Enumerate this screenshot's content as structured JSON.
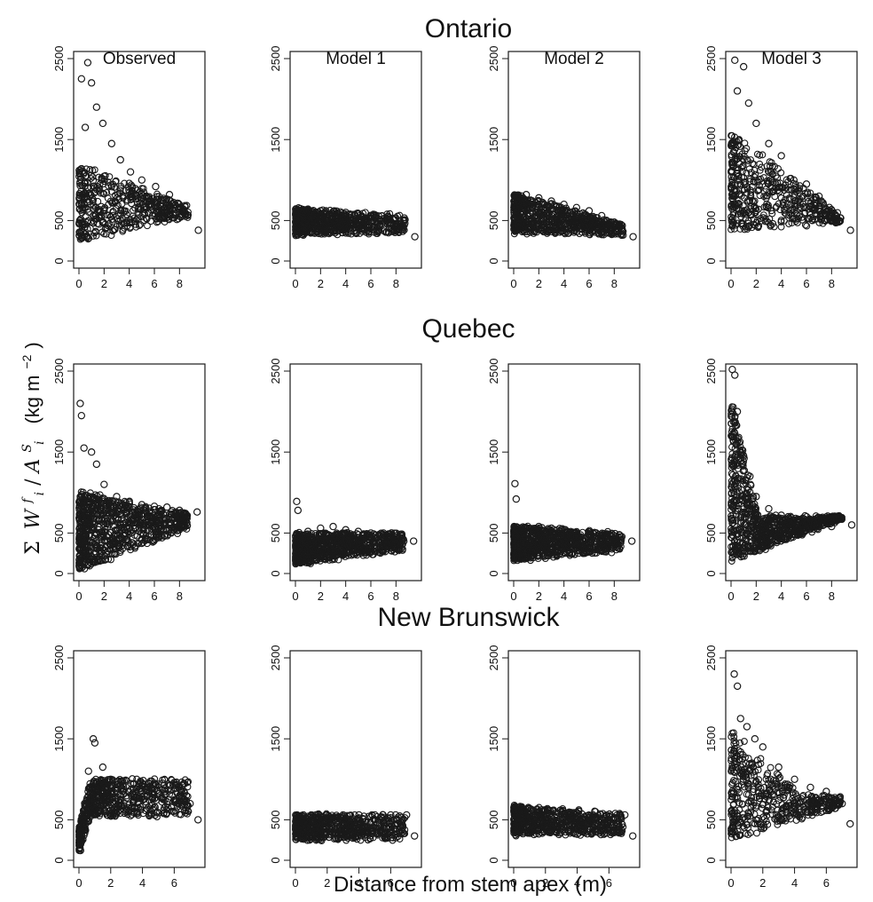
{
  "figure": {
    "xlabel": "Distance from stem apex (m)",
    "ylabel": {
      "sigma": "Σ",
      "W": "W",
      "W_sup": "f",
      "W_sub": "i",
      "slash": "/",
      "A": "A",
      "A_sup": "S",
      "A_sub": "i",
      "units": "(kg m",
      "units_exp": "−2",
      "units_close": ")"
    },
    "ink_color": "#1a1a1a"
  },
  "chart_data": [
    {
      "region": "Ontario",
      "type": "scatter",
      "ylim": [
        0,
        2500
      ],
      "yticks": [
        "0",
        "500",
        "1500",
        "2500"
      ],
      "xlim": [
        0,
        9.6
      ],
      "xticks": [
        "0",
        "2",
        "4",
        "6",
        "8"
      ],
      "panels": [
        {
          "title": "Observed",
          "model": "obs-on",
          "x": [
            0.2,
            0.5,
            0.7,
            1.0,
            1.4,
            1.9,
            2.6,
            3.3,
            4.1,
            5.0,
            6.1,
            7.2,
            8.3,
            9.5
          ],
          "y": [
            2250,
            1650,
            2450,
            2200,
            1900,
            1700,
            1450,
            1250,
            1100,
            1000,
            920,
            820,
            640,
            380
          ]
        },
        {
          "title": "Model 1",
          "model": "m1",
          "x": [
            0.2,
            1.0,
            2.0,
            3.0,
            4.0,
            5.0,
            6.0,
            7.0,
            8.0,
            9.5
          ],
          "y": [
            620,
            640,
            620,
            610,
            600,
            580,
            560,
            520,
            450,
            300
          ]
        },
        {
          "title": "Model 2",
          "model": "m2",
          "x": [
            0.2,
            1.0,
            2.0,
            3.0,
            4.0,
            5.0,
            6.0,
            7.0,
            8.0,
            9.5
          ],
          "y": [
            800,
            820,
            780,
            740,
            700,
            660,
            620,
            560,
            480,
            300
          ]
        },
        {
          "title": "Model 3",
          "model": "obs-on-m3",
          "x": [
            0.3,
            0.5,
            1.0,
            1.4,
            2.0,
            3.0,
            4.0,
            5.0,
            6.0,
            7.0,
            8.0,
            9.5
          ],
          "y": [
            2480,
            2100,
            2400,
            1950,
            1700,
            1450,
            1300,
            1000,
            950,
            800,
            600,
            380
          ]
        }
      ]
    },
    {
      "region": "Quebec",
      "type": "scatter",
      "ylim": [
        0,
        2500
      ],
      "yticks": [
        "0",
        "500",
        "1500",
        "2500"
      ],
      "xlim": [
        0,
        9.6
      ],
      "xticks": [
        "0",
        "2",
        "4",
        "6",
        "8"
      ],
      "panels": [
        {
          "title": "",
          "model": "obs-qc",
          "x": [
            0.1,
            0.2,
            0.4,
            1.0,
            1.4,
            2.0,
            3.0,
            4.0,
            5.0,
            6.0,
            7.0,
            8.0,
            9.4
          ],
          "y": [
            2100,
            1950,
            1550,
            1500,
            1350,
            1100,
            950,
            880,
            850,
            830,
            820,
            780,
            760
          ]
        },
        {
          "title": "",
          "model": "m1-qc",
          "x": [
            0.1,
            0.2,
            1.0,
            2.0,
            3.0,
            4.0,
            5.0,
            6.0,
            7.0,
            8.0,
            9.4
          ],
          "y": [
            890,
            780,
            520,
            560,
            580,
            540,
            520,
            500,
            500,
            450,
            400
          ]
        },
        {
          "title": "",
          "model": "m2-qc",
          "x": [
            0.1,
            0.2,
            1.0,
            2.0,
            3.0,
            4.0,
            5.0,
            6.0,
            7.0,
            8.0,
            9.4
          ],
          "y": [
            1110,
            920,
            560,
            580,
            560,
            520,
            500,
            480,
            460,
            420,
            400
          ]
        },
        {
          "title": "",
          "model": "m3-qc",
          "x": [
            0.1,
            0.3,
            0.5,
            1.0,
            1.5,
            2.0,
            3.0,
            4.0,
            5.0,
            6.0,
            7.0,
            8.0,
            9.6
          ],
          "y": [
            2520,
            2450,
            2000,
            1450,
            1200,
            950,
            800,
            720,
            650,
            620,
            600,
            580,
            600
          ]
        }
      ]
    },
    {
      "region": "New Brunswick",
      "type": "scatter",
      "ylim": [
        0,
        2500
      ],
      "yticks": [
        "0",
        "500",
        "1500",
        "2500"
      ],
      "xlim": [
        0,
        7.6
      ],
      "xticks": [
        "0",
        "2",
        "4",
        "6"
      ],
      "panels": [
        {
          "title": "",
          "model": "obs-nb",
          "x": [
            0.1,
            0.3,
            0.6,
            0.9,
            1.0,
            1.5,
            2.0,
            3.0,
            4.0,
            5.0,
            6.0,
            7.0,
            7.5
          ],
          "y": [
            120,
            600,
            1100,
            1500,
            1450,
            1150,
            1000,
            980,
            950,
            940,
            960,
            700,
            500
          ]
        },
        {
          "title": "",
          "model": "m1-nb",
          "x": [
            0.1,
            0.5,
            1.0,
            2.0,
            3.0,
            4.0,
            5.0,
            6.0,
            7.0,
            7.5
          ],
          "y": [
            560,
            560,
            560,
            560,
            560,
            560,
            560,
            560,
            560,
            300
          ]
        },
        {
          "title": "",
          "model": "m2-nb",
          "x": [
            0.1,
            0.5,
            1.0,
            2.0,
            3.0,
            4.0,
            5.0,
            6.0,
            7.0,
            7.5
          ],
          "y": [
            660,
            660,
            640,
            620,
            600,
            580,
            560,
            540,
            560,
            300
          ]
        },
        {
          "title": "",
          "model": "m3-nb",
          "x": [
            0.2,
            0.4,
            0.6,
            1.0,
            1.5,
            2.0,
            3.0,
            4.0,
            5.0,
            6.0,
            7.0,
            7.5
          ],
          "y": [
            2300,
            2150,
            1750,
            1650,
            1500,
            1400,
            1150,
            1000,
            900,
            850,
            700,
            450
          ]
        }
      ]
    }
  ]
}
